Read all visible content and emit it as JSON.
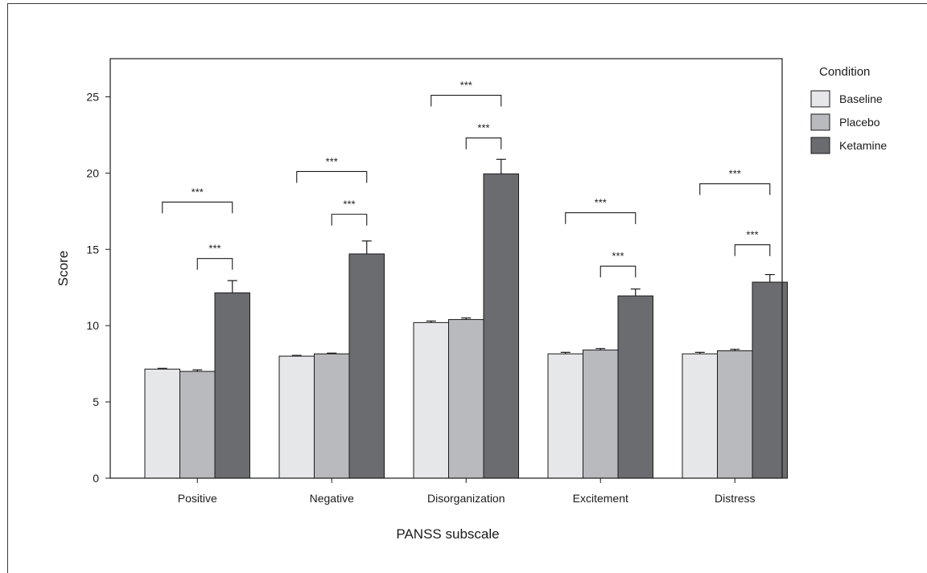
{
  "chart_data": {
    "type": "bar",
    "xlabel": "PANSS subscale",
    "ylabel": "Score",
    "ylim": [
      0,
      27.5
    ],
    "yticks": [
      0,
      5,
      10,
      15,
      20,
      25
    ],
    "grid": false,
    "legend_position": "right",
    "categories": [
      "Positive",
      "Negative",
      "Disorganization",
      "Excitement",
      "Distress"
    ],
    "series": [
      {
        "name": "Baseline",
        "values": [
          7.15,
          8.0,
          10.2,
          8.15,
          8.15
        ],
        "errors": [
          0.05,
          0.05,
          0.1,
          0.1,
          0.1
        ],
        "color": "#e6e7e9"
      },
      {
        "name": "Placebo",
        "values": [
          7.0,
          8.15,
          10.4,
          8.4,
          8.35
        ],
        "errors": [
          0.1,
          0.05,
          0.1,
          0.1,
          0.1
        ],
        "color": "#b9babd"
      },
      {
        "name": "Ketamine",
        "values": [
          12.15,
          14.7,
          19.95,
          11.95,
          12.85
        ],
        "errors": [
          0.8,
          0.85,
          0.95,
          0.45,
          0.5
        ],
        "color": "#6b6c70"
      }
    ],
    "significance": [
      {
        "category": "Positive",
        "pair": "Baseline-Ketamine",
        "label": "***",
        "level": 18.1
      },
      {
        "category": "Positive",
        "pair": "Placebo-Ketamine",
        "label": "***",
        "level": 14.4
      },
      {
        "category": "Negative",
        "pair": "Baseline-Ketamine",
        "label": "***",
        "level": 20.1
      },
      {
        "category": "Negative",
        "pair": "Placebo-Ketamine",
        "label": "***",
        "level": 17.3
      },
      {
        "category": "Disorganization",
        "pair": "Baseline-Ketamine",
        "label": "***",
        "level": 25.1
      },
      {
        "category": "Disorganization",
        "pair": "Placebo-Ketamine",
        "label": "***",
        "level": 22.3
      },
      {
        "category": "Excitement",
        "pair": "Baseline-Ketamine",
        "label": "***",
        "level": 17.4
      },
      {
        "category": "Excitement",
        "pair": "Placebo-Ketamine",
        "label": "***",
        "level": 13.9
      },
      {
        "category": "Distress",
        "pair": "Baseline-Ketamine",
        "label": "***",
        "level": 19.3
      },
      {
        "category": "Distress",
        "pair": "Placebo-Ketamine",
        "label": "***",
        "level": 15.3
      }
    ],
    "legend": {
      "title": "Condition",
      "entries": [
        "Baseline",
        "Placebo",
        "Ketamine"
      ]
    }
  }
}
